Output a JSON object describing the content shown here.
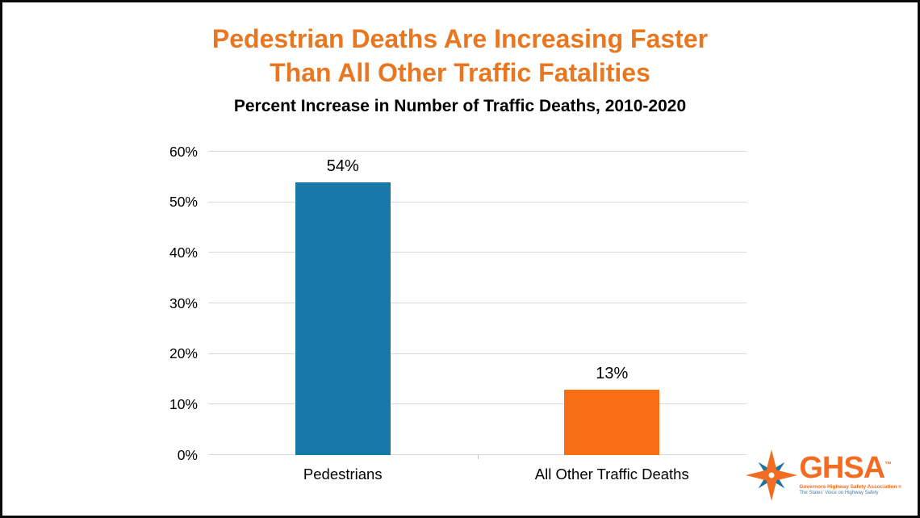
{
  "title": {
    "line1": "Pedestrian Deaths Are Increasing Faster",
    "line2": "Than All Other Traffic Fatalities"
  },
  "subtitle": "Percent Increase in Number of Traffic Deaths, 2010-2020",
  "chart_data": {
    "type": "bar",
    "title": "Pedestrian Deaths Are Increasing Faster Than All Other Traffic Fatalities",
    "subtitle": "Percent Increase in Number of Traffic Deaths, 2010-2020",
    "categories": [
      "Pedestrians",
      "All Other Traffic Deaths"
    ],
    "values": [
      54,
      13
    ],
    "value_labels": [
      "54%",
      "13%"
    ],
    "bar_colors": [
      "#1879a8",
      "#f86e15"
    ],
    "xlabel": "",
    "ylabel": "",
    "ylim": [
      0,
      60
    ],
    "yticks": [
      0,
      10,
      20,
      30,
      40,
      50,
      60
    ],
    "ytick_labels": [
      "0%",
      "10%",
      "20%",
      "30%",
      "40%",
      "50%",
      "60%"
    ],
    "grid": true,
    "legend": "none"
  },
  "logo": {
    "wordmark": "GHSA",
    "trademark": "™",
    "org_name": "Governors Highway Safety Association",
    "registered": "®",
    "tagline": "The States' Voice on Highway Safety"
  },
  "colors": {
    "title_orange": "#e87722",
    "bar_blue": "#1879a8",
    "bar_orange": "#f86e15",
    "gridline": "#d9d9d9",
    "text": "#000000",
    "logo_orange": "#f26c21",
    "logo_blue": "#1b75a0",
    "tagline_blue": "#4d7d9b"
  }
}
